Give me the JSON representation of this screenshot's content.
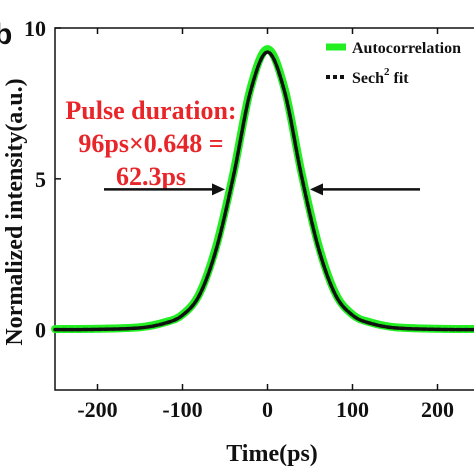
{
  "chart_data": {
    "type": "line",
    "panel_letter": "b",
    "xlabel": "Time(ps)",
    "ylabel": "Normalized intensity(a.u.)",
    "xlim": [
      -250,
      250
    ],
    "ylim": [
      -2,
      10
    ],
    "x_ticks": [
      -200,
      -100,
      0,
      100,
      200
    ],
    "x_tick_labels": [
      "-200",
      "-100",
      "0",
      "100",
      "200"
    ],
    "y_ticks": [
      0,
      5,
      10
    ],
    "y_tick_labels": [
      "0",
      "5",
      "10"
    ],
    "grid": false,
    "legend_position": "top-right",
    "series": [
      {
        "name": "Autocorrelation",
        "style": "thick-solid",
        "color": "#22ee22",
        "x": [
          -250,
          -200,
          -150,
          -120,
          -100,
          -80,
          -60,
          -40,
          -20,
          0,
          20,
          40,
          60,
          80,
          100,
          120,
          150,
          200,
          250
        ],
        "values": [
          0.02,
          0.03,
          0.08,
          0.25,
          0.5,
          1.2,
          2.8,
          5.2,
          8.0,
          9.3,
          8.0,
          5.2,
          2.8,
          1.2,
          0.5,
          0.25,
          0.08,
          0.03,
          0.02
        ]
      },
      {
        "name": "Sech",
        "name_superscript": "2",
        "name_suffix": " fit",
        "style": "dashed",
        "color": "#111111",
        "x": [
          -250,
          -200,
          -150,
          -120,
          -100,
          -80,
          -60,
          -40,
          -20,
          0,
          20,
          40,
          60,
          80,
          100,
          120,
          150,
          200,
          250
        ],
        "values": [
          0.0,
          0.01,
          0.06,
          0.22,
          0.48,
          1.15,
          2.7,
          5.1,
          7.9,
          9.2,
          7.9,
          5.1,
          2.7,
          1.15,
          0.48,
          0.22,
          0.06,
          0.01,
          0.0
        ]
      }
    ],
    "annotations": {
      "lines": [
        "Pulse duration:",
        "96ps×0.648 =",
        "62.3ps"
      ],
      "color": "#e8262a",
      "arrow_left_tip": [
        -50,
        4.65
      ],
      "arrow_right_tip": [
        50,
        4.65
      ]
    }
  }
}
